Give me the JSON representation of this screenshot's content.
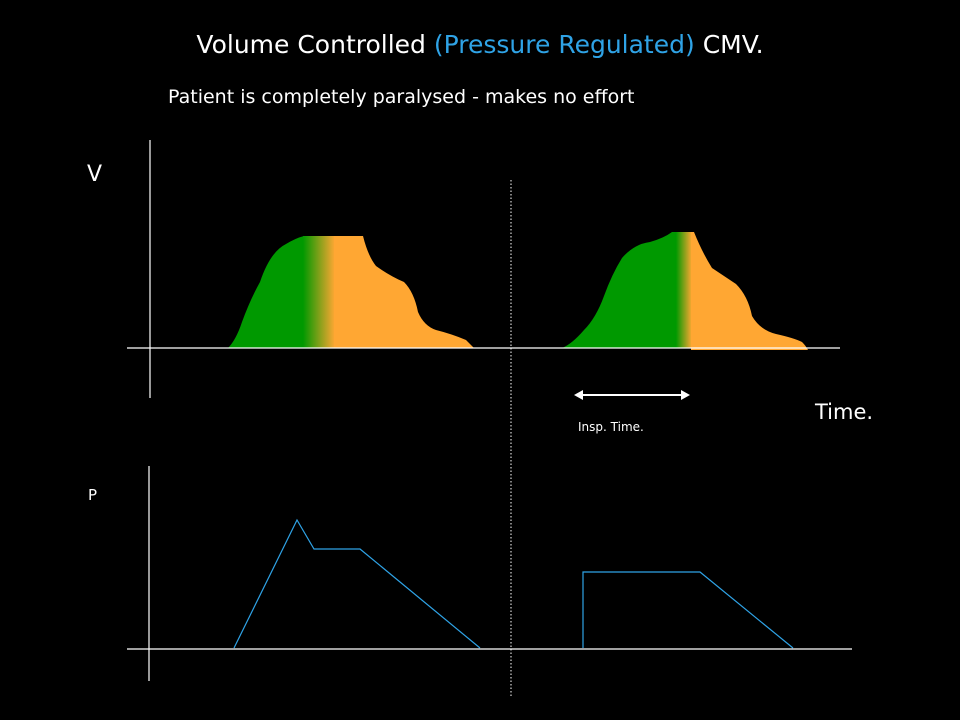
{
  "title": {
    "part1": "Volume Controlled ",
    "part2": "(Pressure Regulated)",
    "part3": " CMV."
  },
  "subtitle": "Patient is completely paralysed - makes no effort",
  "labels": {
    "v_axis": "V",
    "p_axis": "P",
    "time_axis": "Time.",
    "insp_time": "Insp. Time."
  },
  "colors": {
    "background": "#000000",
    "text": "#ffffff",
    "title_accent": "#2fa3e6",
    "inspiration_fill": "#009900",
    "expiration_fill": "#ffa733",
    "pressure_line": "#2fa3e6",
    "axes": "#ffffff"
  }
}
